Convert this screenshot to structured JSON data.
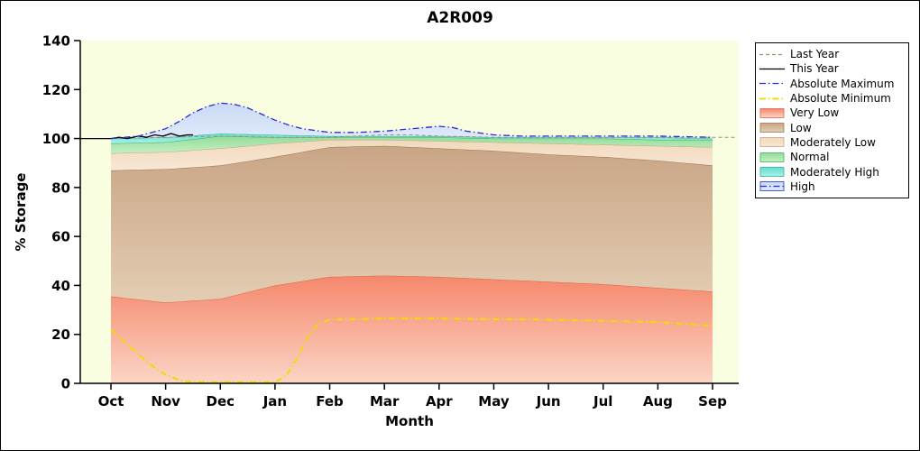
{
  "title": "A2R009",
  "axes": {
    "xlabel": "Month",
    "ylabel": "% Storage",
    "y_ticks": [
      0,
      20,
      40,
      60,
      80,
      100,
      120,
      140
    ]
  },
  "chart_data": {
    "type": "area",
    "title": "A2R009",
    "xlabel": "Month",
    "ylabel": "% Storage",
    "ylim": [
      0,
      140
    ],
    "legend_position": "right",
    "plot_bg": "#FAFEE1",
    "categories": [
      "Oct",
      "Nov",
      "Dec",
      "Jan",
      "Feb",
      "Mar",
      "Apr",
      "May",
      "Jun",
      "Jul",
      "Aug",
      "Sep"
    ],
    "bands": [
      {
        "name": "Very Low",
        "x": [
          0,
          1,
          2,
          3,
          4,
          5,
          6,
          7,
          8,
          9,
          10,
          11
        ],
        "top": [
          35.5,
          33,
          34.5,
          40,
          43.5,
          44,
          43.5,
          42.5,
          41.5,
          40.5,
          39,
          37.5
        ],
        "fill_top": "#F5876B",
        "fill_bottom": "#FBD5C5",
        "edge": "#E0664A"
      },
      {
        "name": "Low",
        "x": [
          0,
          1,
          2,
          3,
          4,
          5,
          6,
          7,
          8,
          9,
          10,
          11
        ],
        "top": [
          87,
          87.5,
          89,
          92.5,
          96.5,
          97,
          96,
          95,
          93.5,
          92.5,
          91,
          89
        ],
        "fill_top": "#C9A585",
        "fill_bottom": "#E3CDB3",
        "edge": "#9C7B55"
      },
      {
        "name": "Moderately Low",
        "x": [
          0,
          1,
          2,
          3,
          4,
          5,
          6,
          7,
          8,
          9,
          10,
          11
        ],
        "top": [
          94,
          94.5,
          96,
          98,
          99.5,
          99.5,
          99,
          98.5,
          98,
          97.5,
          97,
          96.5
        ],
        "fill_top": "#F1D8BC",
        "fill_bottom": "#F8E8D5",
        "edge": "#C9A87E"
      },
      {
        "name": "Normal",
        "x": [
          0,
          1,
          2,
          3,
          4,
          5,
          6,
          7,
          8,
          9,
          10,
          11
        ],
        "top": [
          98,
          98.5,
          101,
          100.5,
          100.5,
          100.5,
          100.5,
          100,
          100,
          100,
          99.5,
          99.5
        ],
        "fill_top": "#93DC98",
        "fill_bottom": "#C4EFC6",
        "edge": "#4FAE5F"
      },
      {
        "name": "Moderately High",
        "x": [
          0,
          1,
          2,
          3,
          4,
          5,
          6,
          7,
          8,
          9,
          10,
          11
        ],
        "top": [
          100,
          100.5,
          102,
          101.5,
          101,
          101,
          101,
          100.5,
          100.5,
          100.5,
          100.5,
          100
        ],
        "fill_top": "#63DFD0",
        "fill_bottom": "#A9F0E7",
        "edge": "#2EB2A4"
      },
      {
        "name": "High",
        "x": [
          0,
          0.5,
          1,
          1.25,
          1.5,
          1.75,
          2,
          2.25,
          2.5,
          2.75,
          3,
          3.25,
          3.5,
          4,
          4.5,
          5,
          5.5,
          6,
          6.25,
          6.5,
          7,
          7.5,
          8,
          9,
          10,
          11
        ],
        "top": [
          100,
          101,
          104,
          107,
          110.5,
          113,
          114.5,
          114,
          112.5,
          110,
          107.5,
          105.5,
          104,
          102.5,
          102.5,
          103,
          104,
          105,
          104.5,
          103,
          101.5,
          101,
          101,
          101,
          101,
          100.5
        ],
        "fill_top": "#C9DAF4",
        "fill_bottom": "#DFE9FA",
        "edge": null
      }
    ],
    "lines": [
      {
        "name": "Last Year",
        "style": "dashed",
        "color": "#A58D6F",
        "width": 1,
        "x": [
          -0.55,
          0,
          1,
          2,
          3,
          4,
          5,
          5.5,
          6,
          7,
          8,
          9,
          10,
          11,
          11.45
        ],
        "v": [
          100,
          100,
          100.5,
          101,
          100.5,
          100.5,
          101.5,
          101.5,
          101,
          100.5,
          100.5,
          100.5,
          100.5,
          100.5,
          100.5
        ]
      },
      {
        "name": "This Year",
        "style": "solid",
        "color": "#000000",
        "width": 1.3,
        "x": [
          -0.55,
          -0.3,
          0,
          0.15,
          0.3,
          0.5,
          0.65,
          0.8,
          0.95,
          1.1,
          1.25,
          1.4,
          1.5
        ],
        "v": [
          100,
          100,
          100,
          100.5,
          100,
          101,
          100.5,
          101.5,
          101,
          102,
          101,
          101.5,
          101.5
        ]
      },
      {
        "name": "Absolute Maximum",
        "style": "dashdot",
        "color": "#2B2BD5",
        "width": 1.3,
        "x": [
          0,
          0.5,
          1,
          1.25,
          1.5,
          1.75,
          2,
          2.25,
          2.5,
          2.75,
          3,
          3.25,
          3.5,
          4,
          4.5,
          5,
          5.5,
          6,
          6.25,
          6.5,
          7,
          7.5,
          8,
          9,
          10,
          11
        ],
        "v": [
          100,
          101,
          104,
          107,
          110.5,
          113,
          114.5,
          114,
          112.5,
          110,
          107.5,
          105.5,
          104,
          102.5,
          102.5,
          103,
          104,
          105,
          104.5,
          103,
          101.5,
          101,
          101,
          101,
          101,
          100.5
        ]
      },
      {
        "name": "Absolute Minimum",
        "style": "dashdot",
        "color": "#EFDC00",
        "width": 2,
        "x": [
          0,
          0.3,
          0.7,
          1,
          1.3,
          1.6,
          2,
          2.5,
          3,
          3.2,
          3.4,
          3.6,
          3.8,
          4,
          5,
          6,
          7,
          8,
          9,
          10,
          11
        ],
        "v": [
          22,
          16,
          8,
          3.5,
          1,
          0.5,
          0.5,
          0.5,
          0.5,
          3,
          10,
          19,
          24.5,
          26,
          26.5,
          26.5,
          26.2,
          26,
          25.5,
          25,
          23.5
        ]
      }
    ]
  },
  "legend": {
    "entries": [
      {
        "label": "Last Year",
        "type": "line",
        "color": "#A58D6F",
        "style": "dashed"
      },
      {
        "label": "This Year",
        "type": "line",
        "color": "#000000",
        "style": "solid"
      },
      {
        "label": "Absolute Maximum",
        "type": "line",
        "color": "#2B2BD5",
        "style": "dashdot"
      },
      {
        "label": "Absolute Minimum",
        "type": "line",
        "color": "#EFDC00",
        "style": "dashdot"
      },
      {
        "label": "Very Low",
        "type": "box",
        "color": "#F5876B",
        "color2": "#FBD5C5",
        "edge": "#E0664A"
      },
      {
        "label": "Low",
        "type": "box",
        "color": "#C9A585",
        "color2": "#E3CDB3",
        "edge": "#9C7B55"
      },
      {
        "label": "Moderately Low",
        "type": "box",
        "color": "#F1D8BC",
        "color2": "#F8E8D5",
        "edge": "#C9A87E"
      },
      {
        "label": "Normal",
        "type": "box",
        "color": "#93DC98",
        "color2": "#C4EFC6",
        "edge": "#4FAE5F"
      },
      {
        "label": "Moderately High",
        "type": "box",
        "color": "#63DFD0",
        "color2": "#A9F0E7",
        "edge": "#2EB2A4"
      },
      {
        "label": "High",
        "type": "box-line",
        "color": "#C9DAF4",
        "color2": "#DFE9FA",
        "edge": "#2B2BD5"
      }
    ]
  }
}
